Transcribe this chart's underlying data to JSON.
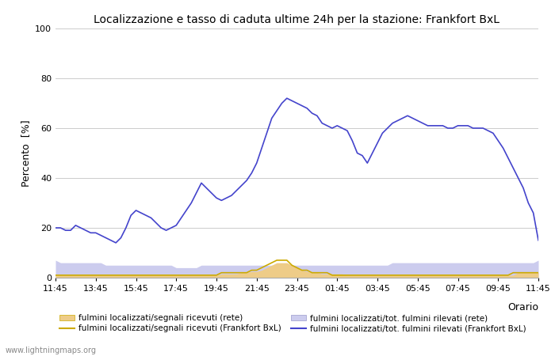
{
  "title": "Localizzazione e tasso di caduta ultime 24h per la stazione: Frankfort BxL",
  "ylabel": "Percento  [%]",
  "xlabel": "Orario",
  "ylim": [
    0,
    100
  ],
  "yticks": [
    0,
    20,
    40,
    60,
    80,
    100
  ],
  "xtick_labels": [
    "11:45",
    "13:45",
    "15:45",
    "17:45",
    "19:45",
    "21:45",
    "23:45",
    "01:45",
    "03:45",
    "05:45",
    "07:45",
    "09:45",
    "11:45"
  ],
  "watermark": "www.lightningmaps.org",
  "color_blue_line": "#4444cc",
  "color_blue_fill": "#ccccee",
  "color_orange_line": "#ccaa00",
  "color_orange_fill": "#eecc88",
  "bg_color": "#ffffff",
  "legend": [
    "fulmini localizzati/segnali ricevuti (rete)",
    "fulmini localizzati/segnali ricevuti (Frankfort BxL)",
    "fulmini localizzati/tot. fulmini rilevati (rete)",
    "fulmini localizzati/tot. fulmini rilevati (Frankfort BxL)"
  ],
  "x_vals": [
    0.0,
    0.25,
    0.5,
    0.75,
    1.0,
    1.25,
    1.5,
    1.75,
    2.0,
    2.25,
    2.5,
    2.75,
    3.0,
    3.25,
    3.5,
    3.75,
    4.0,
    4.25,
    4.5,
    4.75,
    5.0,
    5.25,
    5.5,
    5.75,
    6.0,
    6.25,
    6.5,
    6.75,
    7.0,
    7.25,
    7.5,
    7.75,
    8.0,
    8.25,
    8.5,
    8.75,
    9.0,
    9.25,
    9.5,
    9.75,
    10.0,
    10.25,
    10.5,
    10.75,
    11.0,
    11.25,
    11.5,
    11.75,
    12.0,
    12.25,
    12.5,
    12.75,
    13.0,
    13.25,
    13.5,
    13.75,
    14.0,
    14.25,
    14.5,
    14.75,
    15.0,
    15.25,
    15.5,
    15.75,
    16.0,
    16.25,
    16.5,
    16.75,
    17.0,
    17.25,
    17.5,
    17.75,
    18.0,
    18.25,
    18.5,
    18.75,
    19.0,
    19.25,
    19.5,
    19.75,
    20.0,
    20.25,
    20.5,
    20.75,
    21.0,
    21.25,
    21.5,
    21.75,
    22.0,
    22.25,
    22.5,
    22.75,
    23.0,
    23.25,
    23.5,
    23.75,
    24.0
  ],
  "blue_line_vals": [
    20,
    20,
    19,
    19,
    21,
    20,
    19,
    18,
    18,
    17,
    16,
    15,
    14,
    16,
    20,
    25,
    27,
    26,
    25,
    24,
    22,
    20,
    19,
    20,
    21,
    24,
    27,
    30,
    34,
    38,
    36,
    34,
    32,
    31,
    32,
    33,
    35,
    37,
    39,
    42,
    46,
    52,
    58,
    64,
    67,
    70,
    72,
    71,
    70,
    69,
    68,
    66,
    65,
    62,
    61,
    60,
    61,
    60,
    59,
    55,
    50,
    49,
    46,
    50,
    54,
    58,
    60,
    62,
    63,
    64,
    65,
    64,
    63,
    62,
    61,
    61,
    61,
    61,
    60,
    60,
    61,
    61,
    61,
    60,
    60,
    60,
    59,
    58,
    55,
    52,
    48,
    44,
    40,
    36,
    30,
    26,
    15
  ],
  "orange_line_vals": [
    1,
    1,
    1,
    1,
    1,
    1,
    1,
    1,
    1,
    1,
    1,
    1,
    1,
    1,
    1,
    1,
    1,
    1,
    1,
    1,
    1,
    1,
    1,
    1,
    1,
    1,
    1,
    1,
    1,
    1,
    1,
    1,
    1,
    2,
    2,
    2,
    2,
    2,
    2,
    3,
    3,
    4,
    5,
    6,
    7,
    7,
    7,
    5,
    4,
    3,
    3,
    2,
    2,
    2,
    2,
    1,
    1,
    1,
    1,
    1,
    1,
    1,
    1,
    1,
    1,
    1,
    1,
    1,
    1,
    1,
    1,
    1,
    1,
    1,
    1,
    1,
    1,
    1,
    1,
    1,
    1,
    1,
    1,
    1,
    1,
    1,
    1,
    1,
    1,
    1,
    1,
    2,
    2,
    2,
    2,
    2,
    2
  ],
  "blue_fill_vals": [
    7,
    6,
    6,
    6,
    6,
    6,
    6,
    6,
    6,
    6,
    5,
    5,
    5,
    5,
    5,
    5,
    5,
    5,
    5,
    5,
    5,
    5,
    5,
    5,
    4,
    4,
    4,
    4,
    4,
    5,
    5,
    5,
    5,
    5,
    5,
    5,
    5,
    5,
    5,
    5,
    5,
    5,
    5,
    5,
    5,
    5,
    5,
    5,
    5,
    5,
    5,
    5,
    5,
    5,
    5,
    5,
    5,
    5,
    5,
    5,
    5,
    5,
    5,
    5,
    5,
    5,
    5,
    6,
    6,
    6,
    6,
    6,
    6,
    6,
    6,
    6,
    6,
    6,
    6,
    6,
    6,
    6,
    6,
    6,
    6,
    6,
    6,
    6,
    6,
    6,
    6,
    6,
    6,
    6,
    6,
    6,
    7
  ],
  "orange_fill_vals": [
    1,
    1,
    1,
    1,
    1,
    1,
    1,
    1,
    1,
    1,
    1,
    1,
    1,
    1,
    1,
    1,
    1,
    1,
    1,
    1,
    1,
    1,
    1,
    1,
    1,
    1,
    1,
    1,
    1,
    1,
    1,
    1,
    1,
    1.5,
    1.5,
    1.5,
    1.5,
    2,
    2,
    2.5,
    2.5,
    3,
    4,
    5,
    6,
    6,
    6,
    5,
    4,
    3,
    2.5,
    2,
    2,
    1.5,
    1.5,
    1.5,
    1.5,
    1.5,
    1,
    1,
    1,
    1,
    1,
    1,
    1,
    1,
    1,
    1,
    1,
    1,
    1,
    1,
    1,
    1,
    1,
    1,
    1,
    1,
    1,
    1,
    1,
    1,
    1,
    1,
    1,
    1,
    1,
    1,
    1,
    1,
    1,
    1,
    2,
    2,
    2,
    2,
    2
  ]
}
